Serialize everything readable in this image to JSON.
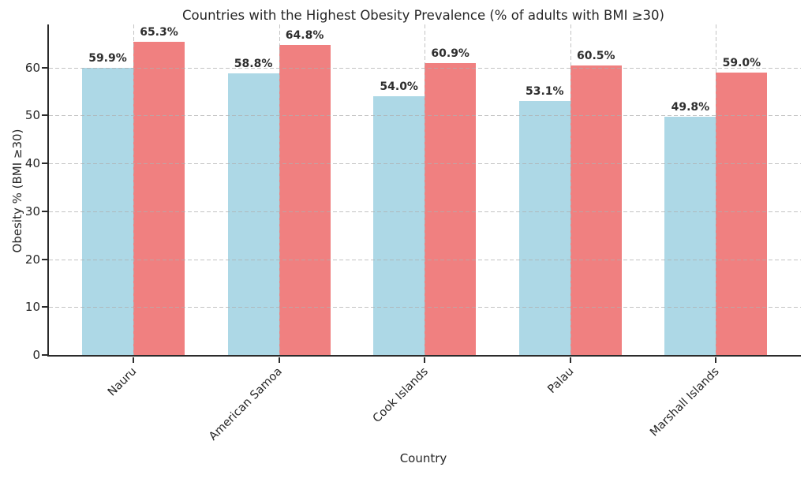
{
  "title": "Countries with the Highest Obesity Prevalence (% of adults with BMI ≥30)",
  "xaxis_label": "Country",
  "yaxis_label": "Obesity % (BMI ≥30)",
  "chart_data": {
    "type": "bar",
    "title": "Countries with the Highest Obesity Prevalence (% of adults with BMI ≥30)",
    "xlabel": "Country",
    "ylabel": "Obesity % (BMI ≥30)",
    "categories": [
      "Nauru",
      "American Samoa",
      "Cook Islands",
      "Palau",
      "Marshall Islands"
    ],
    "series": [
      {
        "name": "blue",
        "color": "#ADD8E6",
        "values": [
          59.9,
          58.8,
          54.0,
          53.1,
          49.8
        ]
      },
      {
        "name": "red",
        "color": "#F08080",
        "values": [
          65.3,
          64.8,
          60.9,
          60.5,
          59.0
        ]
      }
    ],
    "bar_labels": [
      [
        "59.9%",
        "58.8%",
        "54.0%",
        "53.1%",
        "49.8%"
      ],
      [
        "65.3%",
        "64.8%",
        "60.9%",
        "60.5%",
        "59.0%"
      ]
    ],
    "yticks": [
      0,
      10,
      20,
      30,
      40,
      50,
      60
    ],
    "ytick_labels": [
      "0",
      "10",
      "20",
      "30",
      "40",
      "50",
      "60"
    ],
    "ylim": [
      0,
      69
    ],
    "grid": true,
    "grid_style": "dashed",
    "legend": "none",
    "xtick_rotation": 45
  },
  "colors": {
    "background": "#ffffff",
    "bar_blue": "#ADD8E6",
    "bar_red": "#F08080",
    "text": "#262626",
    "spine": "#2b2b2b",
    "grid": "#afafaf"
  }
}
